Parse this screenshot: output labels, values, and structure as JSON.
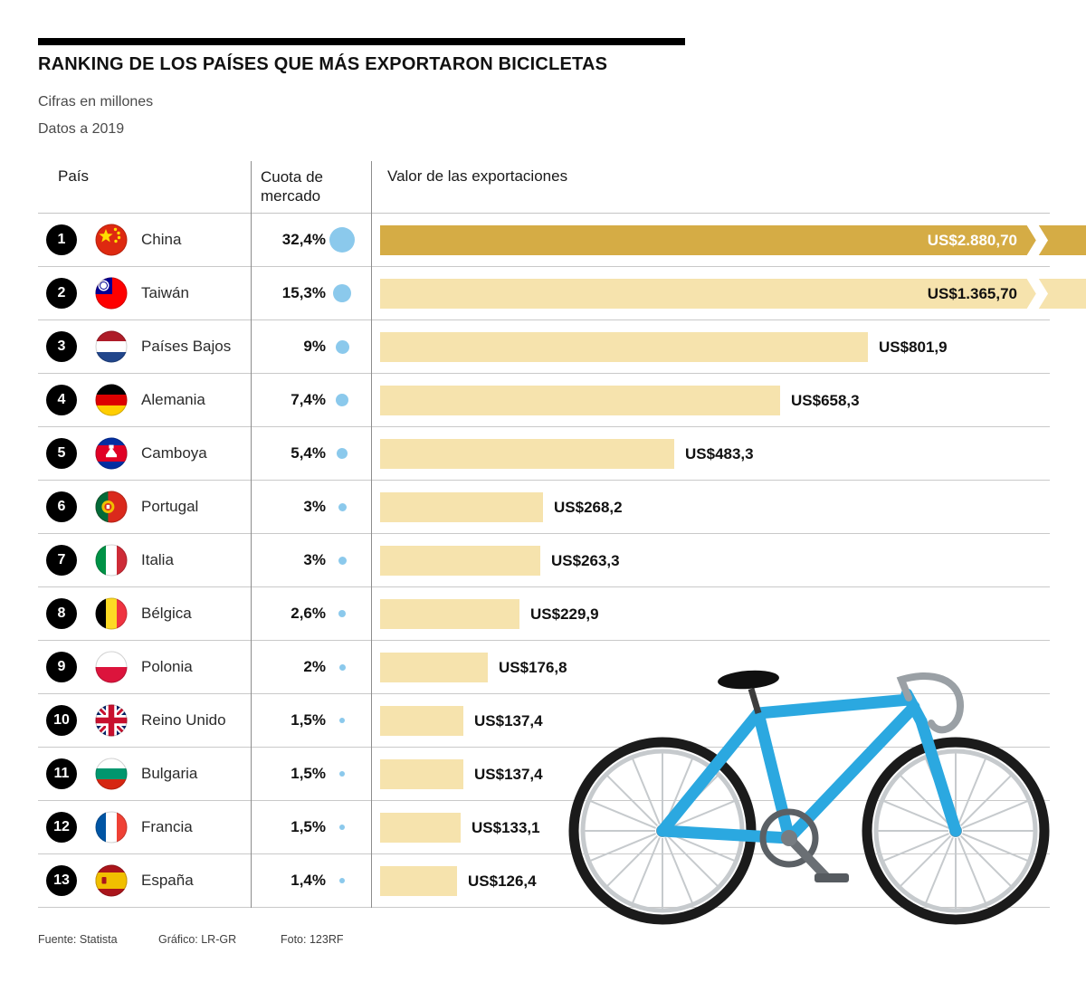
{
  "header": {
    "title": "RANKING DE LOS PAÍSES QUE MÁS EXPORTARON BICICLETAS",
    "subtitle_units": "Cifras en millones",
    "subtitle_year": "Datos a 2019"
  },
  "table": {
    "col_country": "País",
    "col_share": "Cuota de mercado",
    "col_value": "Valor de las exportaciones",
    "rows": [
      {
        "rank": "1",
        "country": "China",
        "flag": "flag-china",
        "share_label": "32,4%",
        "share_pct": 32.4,
        "value": 2880.7,
        "value_label": "US$2.880,70",
        "style": "dark",
        "overflow": true
      },
      {
        "rank": "2",
        "country": "Taiwán",
        "flag": "flag-taiwan",
        "share_label": "15,3%",
        "share_pct": 15.3,
        "value": 1365.7,
        "value_label": "US$1.365,70",
        "style": "light",
        "overflow": true
      },
      {
        "rank": "3",
        "country": "Países Bajos",
        "flag": "flag-netherlands",
        "share_label": "9%",
        "share_pct": 9,
        "value": 801.9,
        "value_label": "US$801,9",
        "style": "light",
        "overflow": false
      },
      {
        "rank": "4",
        "country": "Alemania",
        "flag": "flag-germany",
        "share_label": "7,4%",
        "share_pct": 7.4,
        "value": 658.3,
        "value_label": "US$658,3",
        "style": "light",
        "overflow": false
      },
      {
        "rank": "5",
        "country": "Camboya",
        "flag": "flag-cambodia",
        "share_label": "5,4%",
        "share_pct": 5.4,
        "value": 483.3,
        "value_label": "US$483,3",
        "style": "light",
        "overflow": false
      },
      {
        "rank": "6",
        "country": "Portugal",
        "flag": "flag-portugal",
        "share_label": "3%",
        "share_pct": 3,
        "value": 268.2,
        "value_label": "US$268,2",
        "style": "light",
        "overflow": false
      },
      {
        "rank": "7",
        "country": "Italia",
        "flag": "flag-italy",
        "share_label": "3%",
        "share_pct": 3,
        "value": 263.3,
        "value_label": "US$263,3",
        "style": "light",
        "overflow": false
      },
      {
        "rank": "8",
        "country": "Bélgica",
        "flag": "flag-belgium",
        "share_label": "2,6%",
        "share_pct": 2.6,
        "value": 229.9,
        "value_label": "US$229,9",
        "style": "light",
        "overflow": false
      },
      {
        "rank": "9",
        "country": "Polonia",
        "flag": "flag-poland",
        "share_label": "2%",
        "share_pct": 2,
        "value": 176.8,
        "value_label": "US$176,8",
        "style": "light",
        "overflow": false
      },
      {
        "rank": "10",
        "country": "Reino Unido",
        "flag": "flag-uk",
        "share_label": "1,5%",
        "share_pct": 1.5,
        "value": 137.4,
        "value_label": "US$137,4",
        "style": "light",
        "overflow": false
      },
      {
        "rank": "11",
        "country": "Bulgaria",
        "flag": "flag-bulgaria",
        "share_label": "1,5%",
        "share_pct": 1.5,
        "value": 137.4,
        "value_label": "US$137,4",
        "style": "light",
        "overflow": false
      },
      {
        "rank": "12",
        "country": "Francia",
        "flag": "flag-france",
        "share_label": "1,5%",
        "share_pct": 1.5,
        "value": 133.1,
        "value_label": "US$133,1",
        "style": "light",
        "overflow": false
      },
      {
        "rank": "13",
        "country": "España",
        "flag": "flag-spain",
        "share_label": "1,4%",
        "share_pct": 1.4,
        "value": 126.4,
        "value_label": "US$126,4",
        "style": "light",
        "overflow": false
      }
    ]
  },
  "footer": {
    "source": "Fuente: Statista",
    "credit": "Gráfico: LR-GR",
    "photo": "Foto: 123RF"
  },
  "colors": {
    "bar_light": "#F6E3AD",
    "bar_dark": "#D5AC45",
    "dot_blue": "#8BC9EC",
    "rank_bg": "#000000",
    "frame_blue": "#2BA8E0"
  },
  "chart_data": {
    "type": "bar",
    "title": "RANKING DE LOS PAÍSES QUE MÁS EXPORTARON BICICLETAS",
    "subtitle": "Cifras en millones — Datos a 2019",
    "unit": "US$ millones",
    "year": "2019",
    "orientation": "horizontal",
    "categories": [
      "China",
      "Taiwán",
      "Países Bajos",
      "Alemania",
      "Camboya",
      "Portugal",
      "Italia",
      "Bélgica",
      "Polonia",
      "Reino Unido",
      "Bulgaria",
      "Francia",
      "España"
    ],
    "series": [
      {
        "name": "Valor de las exportaciones (US$ millones)",
        "values": [
          2880.7,
          1365.7,
          801.9,
          658.3,
          483.3,
          268.2,
          263.3,
          229.9,
          176.8,
          137.4,
          137.4,
          133.1,
          126.4
        ]
      },
      {
        "name": "Cuota de mercado (%)",
        "values": [
          32.4,
          15.3,
          9,
          7.4,
          5.4,
          3,
          3,
          2.6,
          2,
          1.5,
          1.5,
          1.5,
          1.4
        ]
      }
    ],
    "value_labels": [
      "US$2.880,70",
      "US$1.365,70",
      "US$801,9",
      "US$658,3",
      "US$483,3",
      "US$268,2",
      "US$263,3",
      "US$229,9",
      "US$176,8",
      "US$137,4",
      "US$137,4",
      "US$133,1",
      "US$126,4"
    ],
    "share_labels": [
      "32,4%",
      "15,3%",
      "9%",
      "7,4%",
      "5,4%",
      "3%",
      "3%",
      "2,6%",
      "2%",
      "1,5%",
      "1,5%",
      "1,5%",
      "1,4%"
    ],
    "legend_position": "none",
    "grid": false,
    "notes": "Las barras de China y Taiwán aparecen truncadas con un corte en zigzag"
  }
}
